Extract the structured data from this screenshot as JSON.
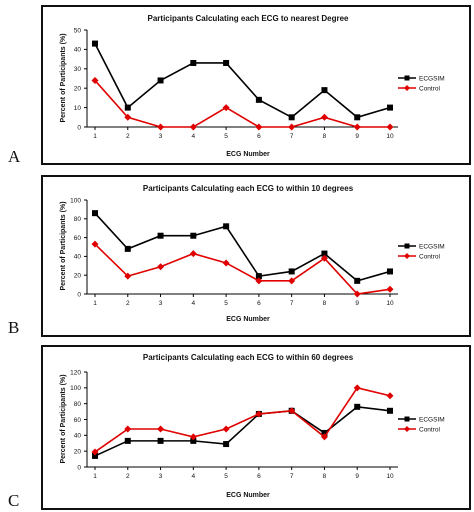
{
  "panel_letters": [
    "A",
    "B",
    "C"
  ],
  "colors": {
    "ecgsim": "#000000",
    "control": "#e00000",
    "frame": "#111111"
  },
  "chart_data": [
    {
      "type": "line",
      "title": "Participants Calculating each ECG to nearest Degree",
      "xlabel": "ECG Number",
      "ylabel": "Percent of Participants (%)",
      "x": [
        1,
        2,
        3,
        4,
        5,
        6,
        7,
        8,
        9,
        10
      ],
      "ylim": [
        0,
        50
      ],
      "yticks": [
        0,
        10,
        20,
        30,
        40,
        50
      ],
      "grid": false,
      "legend_position": "right",
      "series": [
        {
          "name": "ECGSIM",
          "color": "#000000",
          "marker": "square",
          "values": [
            43,
            10,
            24,
            33,
            33,
            14,
            5,
            19,
            5,
            10
          ]
        },
        {
          "name": "Control",
          "color": "#e00000",
          "marker": "diamond",
          "values": [
            24,
            5,
            0,
            0,
            10,
            0,
            0,
            5,
            0,
            0
          ]
        }
      ]
    },
    {
      "type": "line",
      "title": "Participants Calculating each ECG to within 10 degrees",
      "xlabel": "ECG Number",
      "ylabel": "Percent of Participants (%)",
      "x": [
        1,
        2,
        3,
        4,
        5,
        6,
        7,
        8,
        9,
        10
      ],
      "ylim": [
        0,
        100
      ],
      "yticks": [
        0,
        20,
        40,
        60,
        80,
        100
      ],
      "grid": false,
      "legend_position": "right",
      "series": [
        {
          "name": "ECGSIM",
          "color": "#000000",
          "marker": "square",
          "values": [
            86,
            48,
            62,
            62,
            72,
            19,
            24,
            43,
            14,
            24
          ]
        },
        {
          "name": "Control",
          "color": "#e00000",
          "marker": "diamond",
          "values": [
            53,
            19,
            29,
            43,
            33,
            14,
            14,
            38,
            0,
            5
          ]
        }
      ]
    },
    {
      "type": "line",
      "title": "Participants Calculating each ECG to within 60 degrees",
      "xlabel": "ECG Number",
      "ylabel": "Percent of Participants (%)",
      "x": [
        1,
        2,
        3,
        4,
        5,
        6,
        7,
        8,
        9,
        10
      ],
      "ylim": [
        0,
        120
      ],
      "yticks": [
        0,
        20,
        40,
        60,
        80,
        100,
        120
      ],
      "grid": false,
      "legend_position": "right",
      "series": [
        {
          "name": "ECGSIM",
          "color": "#000000",
          "marker": "square",
          "values": [
            14,
            33,
            33,
            33,
            29,
            67,
            71,
            43,
            76,
            71
          ]
        },
        {
          "name": "Control",
          "color": "#e00000",
          "marker": "diamond",
          "values": [
            19,
            48,
            48,
            38,
            48,
            67,
            71,
            38,
            100,
            90
          ]
        }
      ]
    }
  ]
}
